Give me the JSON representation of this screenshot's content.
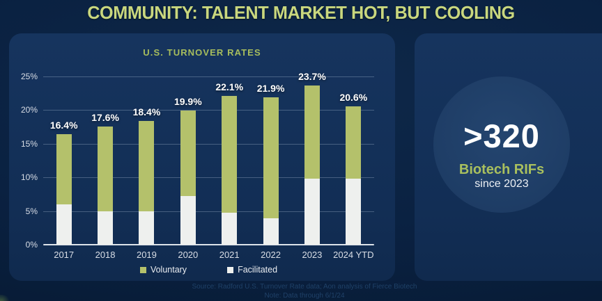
{
  "page": {
    "title": "COMMUNITY: TALENT MARKET HOT, BUT COOLING"
  },
  "chart_panel": {
    "subtitle": "U.S. TURNOVER RATES",
    "source_line1": "Source: Radford U.S. Turnover Rate data; Aon analysis of Fierce Biotech",
    "source_line2": "Note: Data through 6/1/24"
  },
  "chart_data": {
    "type": "bar",
    "stacked": true,
    "title": "U.S. TURNOVER RATES",
    "categories": [
      "2017",
      "2018",
      "2019",
      "2020",
      "2021",
      "2022",
      "2023",
      "2024 YTD"
    ],
    "series": [
      {
        "name": "Voluntary",
        "color": "#b4c16b",
        "values": [
          10.4,
          12.6,
          13.4,
          12.7,
          17.3,
          18.0,
          13.9,
          10.8
        ]
      },
      {
        "name": "Facilitated",
        "color": "#eef0ee",
        "values": [
          6.0,
          5.0,
          5.0,
          7.2,
          4.8,
          3.9,
          9.8,
          9.8
        ]
      }
    ],
    "totals": [
      16.4,
      17.6,
      18.4,
      19.9,
      22.1,
      21.9,
      23.7,
      20.6
    ],
    "total_labels": [
      "16.4%",
      "17.6%",
      "18.4%",
      "19.9%",
      "22.1%",
      "21.9%",
      "23.7%",
      "20.6%"
    ],
    "y_ticks": [
      0,
      5,
      10,
      15,
      20,
      25
    ],
    "y_tick_labels": [
      "0%",
      "5%",
      "10%",
      "15%",
      "20%",
      "25%"
    ],
    "ylim": [
      0,
      25
    ],
    "xlabel": "",
    "ylabel": "",
    "grid": true,
    "legend_position": "bottom"
  },
  "stat_panel": {
    "value": ">320",
    "label": "Biotech RIFs",
    "sublabel": "since 2023"
  },
  "colors": {
    "background": "#0a2141",
    "panel": "#14315a",
    "title_green": "#c9d77e",
    "subtitle_green": "#a7bd5d",
    "bar_green": "#b4c16b",
    "bar_white": "#eef0ee",
    "stat_circle": "#1f3e67",
    "text_white": "#ffffff"
  }
}
